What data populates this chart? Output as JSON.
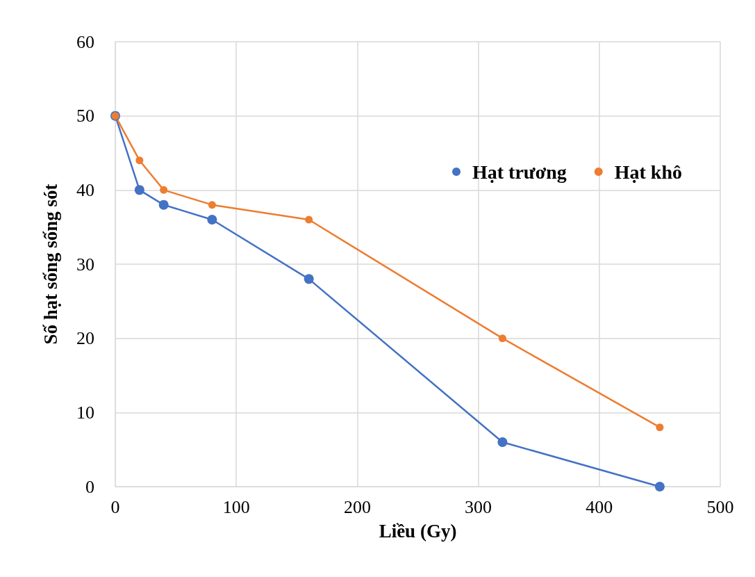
{
  "chart_data": {
    "type": "line",
    "xlabel": "Liều (Gy)",
    "ylabel": "Số hạt sống sống sót",
    "x": [
      0,
      20,
      40,
      80,
      160,
      320,
      450
    ],
    "series": [
      {
        "name": "Hạt trương",
        "color": "#4472c4",
        "values": [
          50,
          40,
          38,
          36,
          28,
          6,
          0
        ]
      },
      {
        "name": "Hạt khô",
        "color": "#ed7d31",
        "values": [
          50,
          44,
          40,
          38,
          36,
          20,
          8
        ]
      }
    ],
    "xlim": [
      0,
      500
    ],
    "xticks": [
      0,
      100,
      200,
      300,
      400,
      500
    ],
    "ylim": [
      0,
      60
    ],
    "yticks": [
      0,
      10,
      20,
      30,
      40,
      50,
      60
    ],
    "grid": true,
    "legend": "top right",
    "marker": "circle",
    "line_style": "solid"
  }
}
